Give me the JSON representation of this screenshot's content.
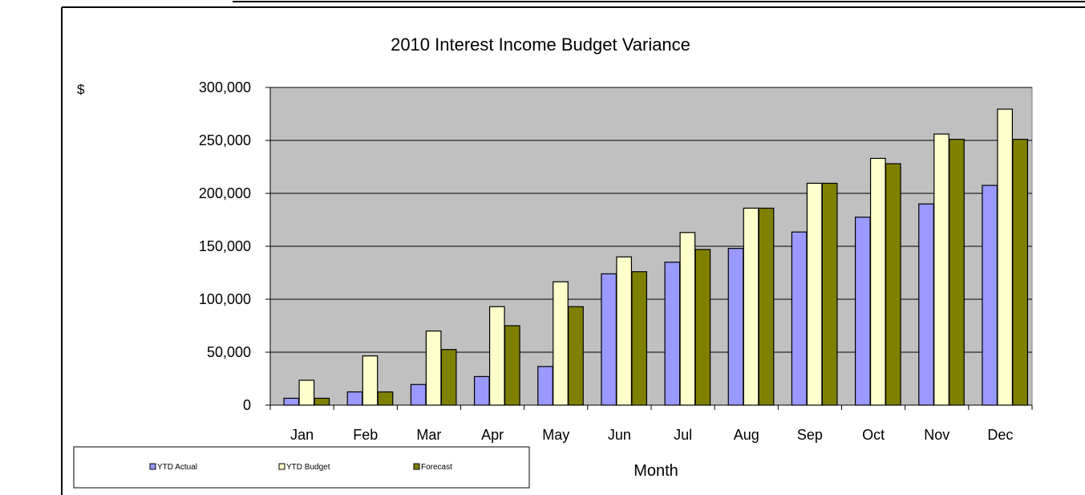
{
  "chart_data": {
    "type": "bar",
    "title": "2010 Interest Income Budget Variance",
    "xlabel": "Month",
    "ylabel": "$",
    "ylim": [
      0,
      300000
    ],
    "yticks": [
      0,
      50000,
      100000,
      150000,
      200000,
      250000,
      300000
    ],
    "ytick_labels": [
      "0",
      "50,000",
      "100,000",
      "150,000",
      "200,000",
      "250,000",
      "300,000"
    ],
    "grid": true,
    "legend_position": "bottom-left",
    "plot_background": "#c0c0c0",
    "categories": [
      "Jan",
      "Feb",
      "Mar",
      "Apr",
      "May",
      "Jun",
      "Jul",
      "Aug",
      "Sep",
      "Oct",
      "Nov",
      "Dec"
    ],
    "series": [
      {
        "name": "YTD Actual",
        "color": "#9999ff",
        "values": [
          6500,
          12500,
          19500,
          27000,
          36500,
          124000,
          135000,
          148000,
          163500,
          177500,
          190000,
          207500
        ]
      },
      {
        "name": "YTD Budget",
        "color": "#ffffcc",
        "values": [
          23500,
          46500,
          70000,
          93000,
          116500,
          140000,
          163000,
          186000,
          209500,
          233000,
          256000,
          279500
        ]
      },
      {
        "name": "Forecast",
        "color": "#808000",
        "values": [
          6500,
          12500,
          52500,
          75000,
          93000,
          126000,
          147000,
          186000,
          209500,
          228000,
          251000,
          251000
        ]
      }
    ]
  }
}
